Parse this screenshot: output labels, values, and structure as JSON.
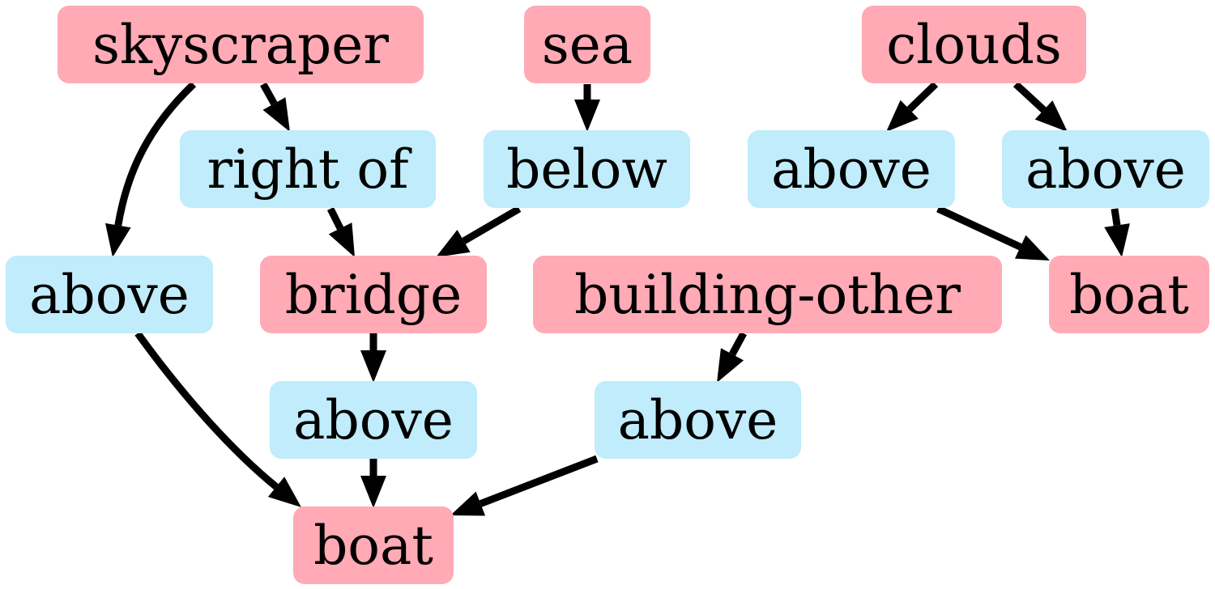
{
  "colors": {
    "object": "#ffaab5",
    "relation": "#c0ecfb",
    "edge": "#000000"
  },
  "nodes": {
    "skyscraper": {
      "label": "skyscraper",
      "kind": "object"
    },
    "sea": {
      "label": "sea",
      "kind": "object"
    },
    "clouds": {
      "label": "clouds",
      "kind": "object"
    },
    "right_of": {
      "label": "right of",
      "kind": "relation"
    },
    "below": {
      "label": "below",
      "kind": "relation"
    },
    "above_clouds_1": {
      "label": "above",
      "kind": "relation"
    },
    "above_clouds_2": {
      "label": "above",
      "kind": "relation"
    },
    "above_sky": {
      "label": "above",
      "kind": "relation"
    },
    "bridge": {
      "label": "bridge",
      "kind": "object"
    },
    "building_other": {
      "label": "building-other",
      "kind": "object"
    },
    "boat_right": {
      "label": "boat",
      "kind": "object"
    },
    "above_bridge": {
      "label": "above",
      "kind": "relation"
    },
    "above_building": {
      "label": "above",
      "kind": "relation"
    },
    "boat_bottom": {
      "label": "boat",
      "kind": "object"
    }
  },
  "edges": [
    {
      "from": "skyscraper",
      "to": "above_sky"
    },
    {
      "from": "skyscraper",
      "to": "right_of"
    },
    {
      "from": "sea",
      "to": "below"
    },
    {
      "from": "clouds",
      "to": "above_clouds_1"
    },
    {
      "from": "clouds",
      "to": "above_clouds_2"
    },
    {
      "from": "right_of",
      "to": "bridge"
    },
    {
      "from": "below",
      "to": "bridge"
    },
    {
      "from": "above_clouds_1",
      "to": "boat_right"
    },
    {
      "from": "above_clouds_2",
      "to": "boat_right"
    },
    {
      "from": "above_sky",
      "to": "boat_bottom"
    },
    {
      "from": "bridge",
      "to": "above_bridge"
    },
    {
      "from": "building_other",
      "to": "above_building"
    },
    {
      "from": "above_bridge",
      "to": "boat_bottom"
    },
    {
      "from": "above_building",
      "to": "boat_bottom"
    }
  ]
}
